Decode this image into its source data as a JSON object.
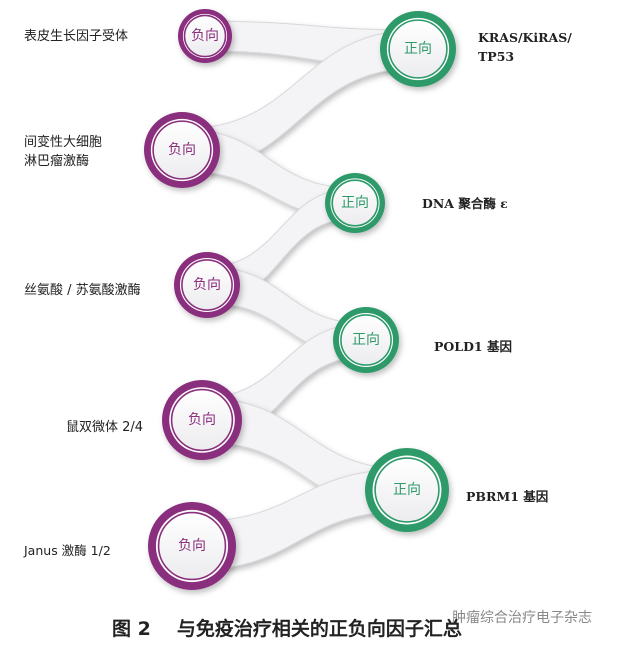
{
  "colors": {
    "negative": "#8a2f7e",
    "positive": "#2e9a6a"
  },
  "nodes": [
    {
      "type": "negative",
      "label": "负向",
      "name": "表皮生长因子受体"
    },
    {
      "type": "positive",
      "label": "正向",
      "name": "KRAS/KiRAS/\nTP53"
    },
    {
      "type": "negative",
      "label": "负向",
      "name": "间变性大细胞\n淋巴瘤激酶"
    },
    {
      "type": "positive",
      "label": "正向",
      "name": "DNA 聚合酶 ε"
    },
    {
      "type": "negative",
      "label": "负向",
      "name": "丝氨酸 / 苏氨酸激酶"
    },
    {
      "type": "positive",
      "label": "正向",
      "name": "POLD1 基因"
    },
    {
      "type": "negative",
      "label": "负向",
      "name": "鼠双微体 2/4"
    },
    {
      "type": "positive",
      "label": "正向",
      "name": "PBRM1 基因"
    },
    {
      "type": "negative",
      "label": "负向",
      "name": "Janus 激酶 1/2"
    }
  ],
  "edges": [
    [
      0,
      1
    ],
    [
      2,
      1
    ],
    [
      2,
      3
    ],
    [
      4,
      3
    ],
    [
      4,
      5
    ],
    [
      6,
      5
    ],
    [
      6,
      7
    ],
    [
      8,
      7
    ]
  ],
  "caption": {
    "figure": "图 2",
    "title": "与免疫治疗相关的正负向因子汇总"
  },
  "watermark": "肿瘤综合治疗电子杂志"
}
